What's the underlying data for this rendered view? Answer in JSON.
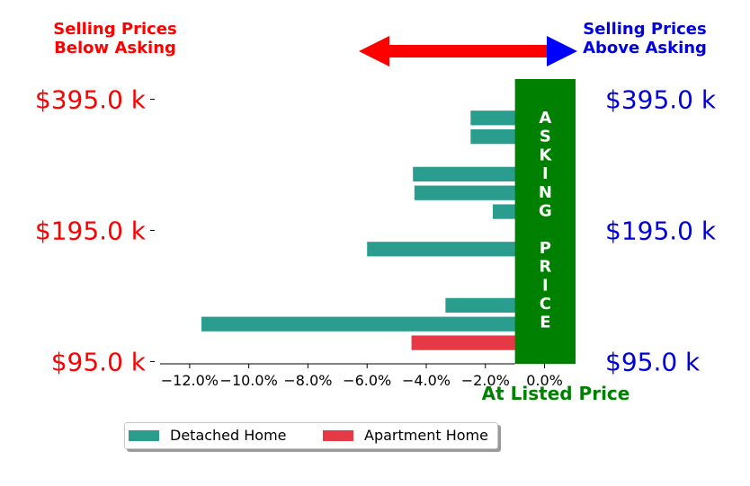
{
  "chart_data": {
    "type": "bar",
    "orientation": "horizontal",
    "header_left": [
      "Selling Prices",
      "Below Asking"
    ],
    "header_right": [
      "Selling Prices",
      "Above Asking"
    ],
    "xlabel": "At Listed Price",
    "xlim": [
      -13.0,
      1.2
    ],
    "x_ticks": [
      -12,
      -10,
      -8,
      -6,
      -4,
      -2,
      0
    ],
    "x_tick_labels": [
      "−12.0%",
      "−10.0%",
      "−8.0%",
      "−6.0%",
      "−4.0%",
      "−2.0%",
      "0.0%"
    ],
    "y_tick_labels_left": [
      "$395.0 k",
      "$195.0 k",
      "$95.0 k"
    ],
    "y_tick_labels_right": [
      "$395.0 k",
      "$195.0 k",
      "$95.0 k"
    ],
    "y_tick_rows": [
      0,
      7,
      14
    ],
    "asking_price_label": [
      "A",
      "S",
      "K",
      "I",
      "N",
      "G",
      "",
      "P",
      "R",
      "I",
      "C",
      "E"
    ],
    "series": [
      {
        "name": "Detached Home",
        "color": "#2a9d8f"
      },
      {
        "name": "Apartment Home",
        "color": "#e63946"
      }
    ],
    "rows": [
      {
        "value": 0.35,
        "series": 0
      },
      {
        "value": -2.5,
        "series": 0
      },
      {
        "value": -2.5,
        "series": 0
      },
      {
        "value": 0.35,
        "series": 0
      },
      {
        "value": -4.45,
        "series": 0
      },
      {
        "value": -4.4,
        "series": 0
      },
      {
        "value": -1.75,
        "series": 0
      },
      {
        "value": 0.35,
        "series": 1
      },
      {
        "value": -6.0,
        "series": 0
      },
      {
        "value": 0.35,
        "series": 1
      },
      {
        "value": 0.35,
        "series": 0
      },
      {
        "value": -3.35,
        "series": 0
      },
      {
        "value": -11.6,
        "series": 0
      },
      {
        "value": -4.5,
        "series": 1
      }
    ],
    "colors": {
      "left_labels": "#ff0000",
      "right_labels": "#0000dd",
      "asking_band": "#008000",
      "xlabel": "#008000",
      "arrow_left": "#ff0000",
      "arrow_right": "#0000ff"
    },
    "legend": "bottom-center",
    "grid": false
  }
}
